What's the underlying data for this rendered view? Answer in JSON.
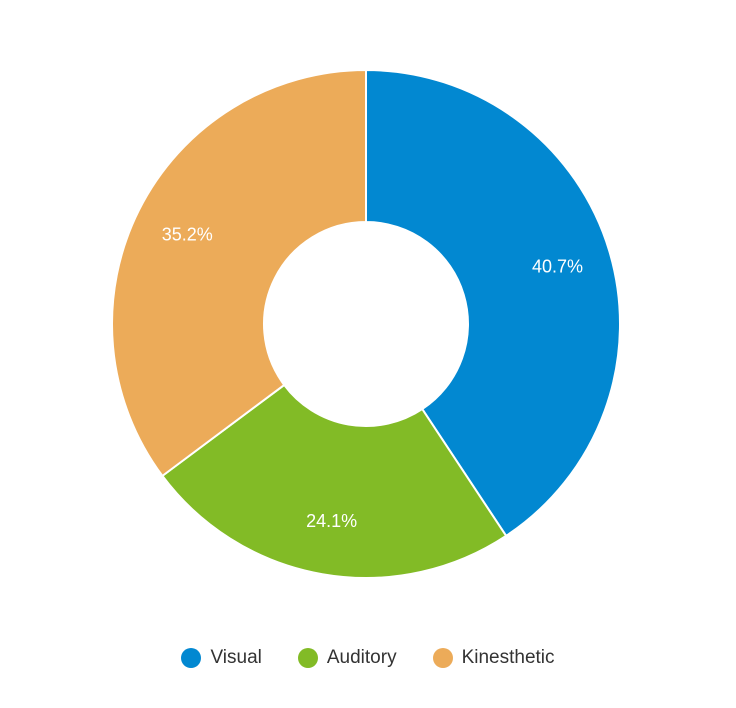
{
  "chart_data": {
    "type": "pie",
    "variant": "donut",
    "categories": [
      "Visual",
      "Auditory",
      "Kinesthetic"
    ],
    "values": [
      40.7,
      24.1,
      35.2
    ],
    "labels": [
      "40.7%",
      "24.1%",
      "35.2%"
    ],
    "colors": [
      "#0288d1",
      "#82bb26",
      "#ecab59"
    ],
    "legend_position": "bottom"
  }
}
